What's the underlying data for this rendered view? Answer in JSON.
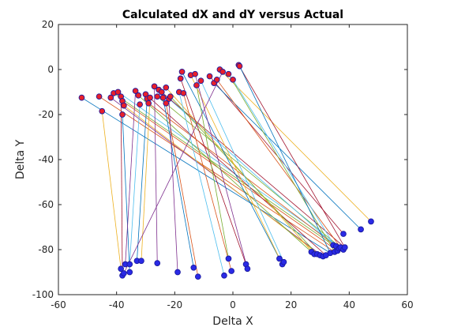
{
  "chart_data": {
    "type": "scatter",
    "title": "Calculated dX and dY versus Actual",
    "xlabel": "Delta X",
    "ylabel": "Delta Y",
    "xlim": [
      -60,
      60
    ],
    "ylim": [
      -100,
      20
    ],
    "xticks": [
      "-60",
      "-40",
      "-20",
      "0",
      "20",
      "40",
      "60"
    ],
    "yticks": [
      "-100",
      "-80",
      "-60",
      "-40",
      "-20",
      "0",
      "20"
    ],
    "grid": false,
    "legend": "none",
    "colors": {
      "calculated_marker_fill": "#e8202a",
      "actual_marker_fill": "#2a2ae6",
      "lines": [
        "#0072bd",
        "#d95319",
        "#edb120",
        "#7e2f8e",
        "#77ac30",
        "#4dbeee",
        "#a2142f"
      ]
    },
    "series": [
      {
        "name": "",
        "values": [
          {
            "x": -52,
            "y": -12.5
          },
          {
            "x": -46,
            "y": -12
          },
          {
            "x": -45,
            "y": -18.5
          },
          {
            "x": -42,
            "y": -12.5
          },
          {
            "x": -41,
            "y": -10.5
          },
          {
            "x": -39.5,
            "y": -10
          },
          {
            "x": -38.5,
            "y": -12
          },
          {
            "x": -38,
            "y": -20
          },
          {
            "x": -38,
            "y": -14
          },
          {
            "x": -37.5,
            "y": -16
          },
          {
            "x": -33.5,
            "y": -9.5
          },
          {
            "x": -32.5,
            "y": -11.5
          },
          {
            "x": -32,
            "y": -15.5
          },
          {
            "x": -30,
            "y": -11
          },
          {
            "x": -29.5,
            "y": -13
          },
          {
            "x": -29,
            "y": -15
          },
          {
            "x": -28.5,
            "y": -12.5
          },
          {
            "x": -27,
            "y": -7.5
          },
          {
            "x": -26,
            "y": -12
          },
          {
            "x": -25.5,
            "y": -9
          },
          {
            "x": -24.5,
            "y": -10
          },
          {
            "x": -24,
            "y": -12.5
          },
          {
            "x": -23,
            "y": -15
          },
          {
            "x": -23,
            "y": -8
          },
          {
            "x": -22,
            "y": -13
          },
          {
            "x": -21.5,
            "y": -12
          },
          {
            "x": -18.5,
            "y": -10
          },
          {
            "x": -18,
            "y": -4
          },
          {
            "x": -17.5,
            "y": -1
          },
          {
            "x": -17,
            "y": -10.5
          },
          {
            "x": -14.5,
            "y": -2.5
          },
          {
            "x": -13,
            "y": -2
          },
          {
            "x": -12.5,
            "y": -7
          },
          {
            "x": -11,
            "y": -5
          },
          {
            "x": -8,
            "y": -3
          },
          {
            "x": -6.5,
            "y": -6
          },
          {
            "x": -5.5,
            "y": -4.5
          },
          {
            "x": -4.5,
            "y": 0
          },
          {
            "x": -3.5,
            "y": -1
          },
          {
            "x": -1.5,
            "y": -2
          },
          {
            "x": 0,
            "y": -4.5
          },
          {
            "x": 2,
            "y": 2
          },
          {
            "x": 2.3,
            "y": 1.5
          }
        ]
      },
      {
        "name": "",
        "values": [
          {
            "x": -38.5,
            "y": -88.5
          },
          {
            "x": -38,
            "y": -91.5
          },
          {
            "x": -37.5,
            "y": -90.5
          },
          {
            "x": -37,
            "y": -86.5
          },
          {
            "x": -35.5,
            "y": -86.5
          },
          {
            "x": -35.5,
            "y": -90
          },
          {
            "x": -33,
            "y": -85
          },
          {
            "x": -31.5,
            "y": -85
          },
          {
            "x": -26,
            "y": -86
          },
          {
            "x": -19,
            "y": -90
          },
          {
            "x": -13.5,
            "y": -88
          },
          {
            "x": -12,
            "y": -92
          },
          {
            "x": -3,
            "y": -91.5
          },
          {
            "x": -1.5,
            "y": -84
          },
          {
            "x": -0.5,
            "y": -89.5
          },
          {
            "x": 4.5,
            "y": -86.5
          },
          {
            "x": 5,
            "y": -88.5
          },
          {
            "x": 16,
            "y": -84
          },
          {
            "x": 17,
            "y": -86.5
          },
          {
            "x": 17.5,
            "y": -85.5
          },
          {
            "x": 27,
            "y": -81
          },
          {
            "x": 28,
            "y": -82
          },
          {
            "x": 29,
            "y": -82
          },
          {
            "x": 30,
            "y": -82.5
          },
          {
            "x": 31,
            "y": -83
          },
          {
            "x": 32,
            "y": -82.5
          },
          {
            "x": 33.5,
            "y": -81.5
          },
          {
            "x": 34.5,
            "y": -78
          },
          {
            "x": 35,
            "y": -81
          },
          {
            "x": 35.5,
            "y": -78.5
          },
          {
            "x": 36,
            "y": -80.5
          },
          {
            "x": 36.5,
            "y": -79.5
          },
          {
            "x": 37,
            "y": -79
          },
          {
            "x": 38,
            "y": -80
          },
          {
            "x": 38.5,
            "y": -79
          },
          {
            "x": 38,
            "y": -73
          },
          {
            "x": 44,
            "y": -71
          },
          {
            "x": 47.5,
            "y": -67.5
          }
        ]
      }
    ],
    "pairs": [
      [
        -52,
        -12.5,
        33.5,
        -81.5
      ],
      [
        -46,
        -12,
        35,
        -81
      ],
      [
        -45,
        -18.5,
        -38.5,
        -88.5
      ],
      [
        -42,
        -12.5,
        31,
        -83
      ],
      [
        -41,
        -10.5,
        34.5,
        -78
      ],
      [
        -39.5,
        -10,
        38,
        -80
      ],
      [
        -38.5,
        -12,
        -38,
        -91.5
      ],
      [
        -38,
        -20,
        -35.5,
        -90
      ],
      [
        -38,
        -14,
        36,
        -80.5
      ],
      [
        -37.5,
        -16,
        30,
        -82.5
      ],
      [
        -33.5,
        -9.5,
        -37,
        -86.5
      ],
      [
        -32.5,
        -11.5,
        27,
        -81
      ],
      [
        -32,
        -15.5,
        -35.5,
        -86.5
      ],
      [
        -30,
        -11,
        32,
        -82.5
      ],
      [
        -29.5,
        -13,
        -33,
        -85
      ],
      [
        -29,
        -15,
        36.5,
        -79.5
      ],
      [
        -28.5,
        -12.5,
        -31.5,
        -85
      ],
      [
        -27,
        -7.5,
        -26,
        -86
      ],
      [
        -26,
        -12,
        37,
        -79
      ],
      [
        -25.5,
        -9,
        35.5,
        -78.5
      ],
      [
        -24.5,
        -10,
        38.5,
        -79
      ],
      [
        -24,
        -12.5,
        -13.5,
        -88
      ],
      [
        -23,
        -15,
        -12,
        -92
      ],
      [
        -23,
        -8,
        28,
        -82
      ],
      [
        -22,
        -13,
        -19,
        -90
      ],
      [
        -21.5,
        -12,
        29,
        -82
      ],
      [
        -18.5,
        -10,
        -3,
        -91.5
      ],
      [
        -18,
        -4,
        4.5,
        -86.5
      ],
      [
        -17.5,
        -1,
        16,
        -84
      ],
      [
        -17,
        -10.5,
        -0.5,
        -89.5
      ],
      [
        -14.5,
        -2.5,
        17,
        -86.5
      ],
      [
        -13,
        -2,
        5,
        -88.5
      ],
      [
        -12.5,
        -7,
        -1.5,
        -84
      ],
      [
        -11,
        -5,
        17.5,
        -85.5
      ],
      [
        -8,
        -3,
        38,
        -73
      ],
      [
        -6.5,
        -6,
        44,
        -71
      ],
      [
        -5.5,
        -4.5,
        37,
        -79
      ],
      [
        -4.5,
        0,
        47.5,
        -67.5
      ],
      [
        -3.5,
        -1,
        -37.5,
        -90.5
      ],
      [
        -1.5,
        -2,
        35,
        -81
      ],
      [
        0,
        -4.5,
        36,
        -80.5
      ],
      [
        2,
        2,
        38.5,
        -79
      ],
      [
        2.3,
        1.5,
        33.5,
        -81.5
      ]
    ]
  }
}
